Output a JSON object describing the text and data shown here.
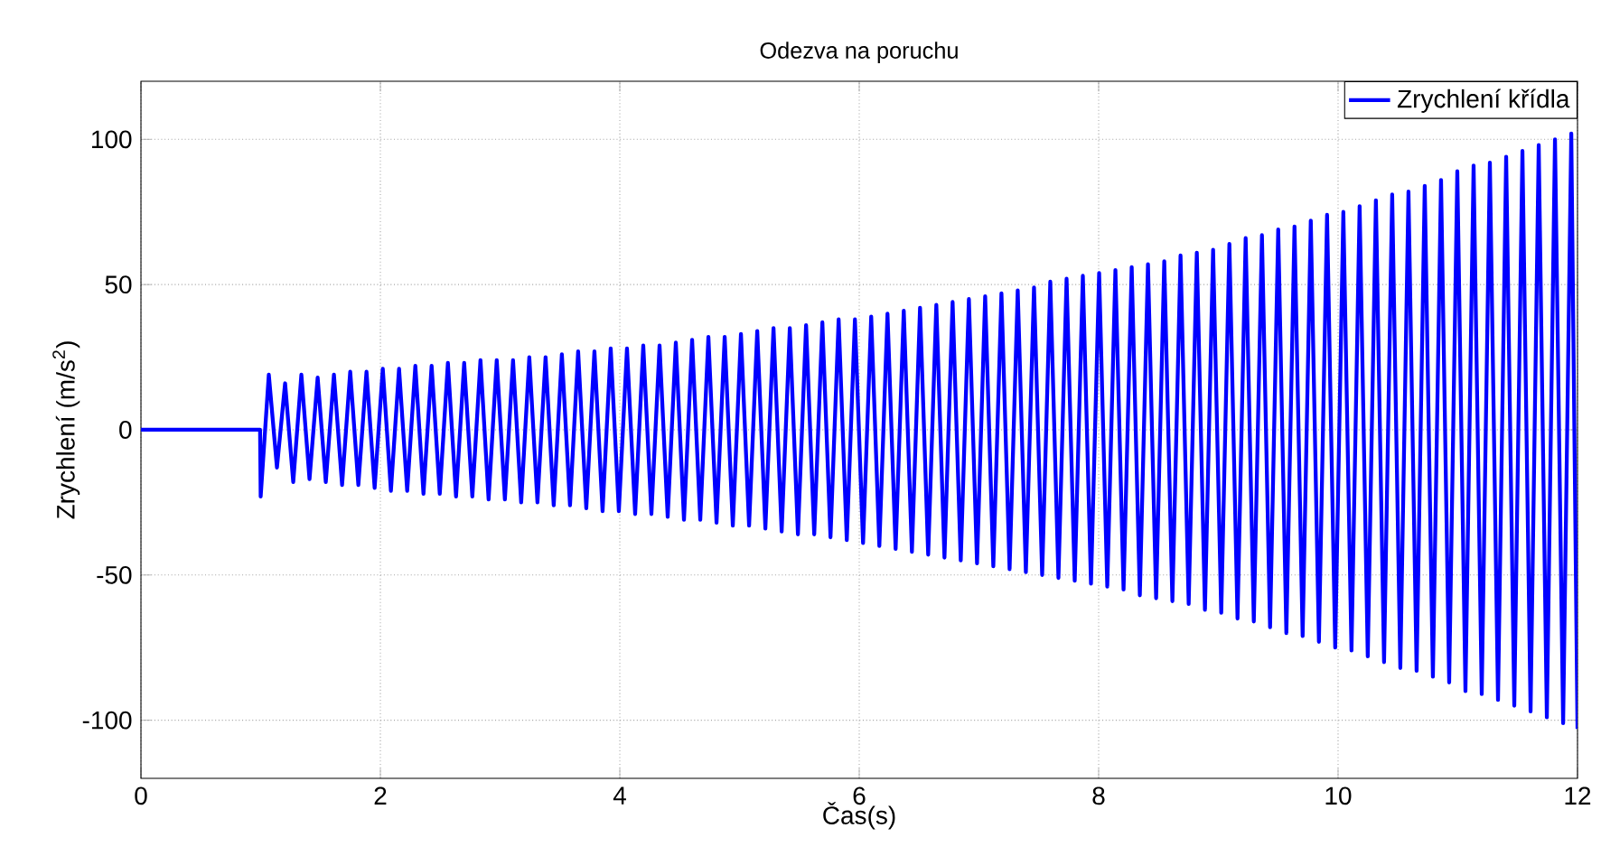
{
  "chart_data": {
    "type": "line",
    "title": "Odezva na poruchu",
    "xlabel": "Čas(s)",
    "ylabel": "Zrychlení (m/s$^{2}$)",
    "xlim": [
      0,
      12
    ],
    "ylim": [
      -120,
      120
    ],
    "xticks": [
      0,
      2,
      4,
      6,
      8,
      10,
      12
    ],
    "yticks": [
      -100,
      -50,
      0,
      50,
      100
    ],
    "grid": true,
    "legend": "top right",
    "marker": "none",
    "line_style": "solid",
    "series": [
      {
        "name": "Zrychlení křídla",
        "color": "#0000ff",
        "x": [
          0,
          0.995,
          1.0,
          1.068,
          1.136,
          1.204,
          1.272,
          1.34,
          1.408,
          1.476,
          1.544,
          1.612,
          1.68,
          1.748,
          1.816,
          1.884,
          1.952,
          2.02,
          2.088,
          2.156,
          2.224,
          2.292,
          2.36,
          2.428,
          2.496,
          2.564,
          2.632,
          2.7,
          2.768,
          2.836,
          2.904,
          2.972,
          3.04,
          3.108,
          3.176,
          3.244,
          3.312,
          3.38,
          3.448,
          3.516,
          3.584,
          3.652,
          3.72,
          3.788,
          3.856,
          3.924,
          3.992,
          4.06,
          4.128,
          4.196,
          4.264,
          4.332,
          4.4,
          4.468,
          4.536,
          4.604,
          4.672,
          4.74,
          4.808,
          4.876,
          4.944,
          5.012,
          5.08,
          5.148,
          5.216,
          5.284,
          5.352,
          5.42,
          5.488,
          5.556,
          5.624,
          5.692,
          5.76,
          5.828,
          5.896,
          5.964,
          6.032,
          6.1,
          6.168,
          6.236,
          6.304,
          6.372,
          6.44,
          6.508,
          6.576,
          6.644,
          6.712,
          6.78,
          6.848,
          6.916,
          6.984,
          7.052,
          7.12,
          7.188,
          7.256,
          7.324,
          7.392,
          7.46,
          7.528,
          7.596,
          7.664,
          7.732,
          7.8,
          7.868,
          7.936,
          8.004,
          8.072,
          8.14,
          8.208,
          8.276,
          8.344,
          8.412,
          8.48,
          8.548,
          8.616,
          8.684,
          8.752,
          8.82,
          8.888,
          8.956,
          9.024,
          9.092,
          9.16,
          9.228,
          9.296,
          9.364,
          9.432,
          9.5,
          9.568,
          9.636,
          9.704,
          9.772,
          9.84,
          9.908,
          9.976,
          10.044,
          10.112,
          10.18,
          10.248,
          10.316,
          10.384,
          10.452,
          10.52,
          10.588,
          10.656,
          10.724,
          10.792,
          10.86,
          10.928,
          10.996,
          11.064,
          11.132,
          11.2,
          11.268,
          11.336,
          11.404,
          11.472,
          11.54,
          11.608,
          11.676,
          11.744,
          11.812,
          11.88,
          11.948,
          12.0
        ],
        "values": [
          0,
          0,
          -23,
          19,
          -13,
          16,
          -18,
          19,
          -17,
          18,
          -18,
          19,
          -19,
          20,
          -19,
          20,
          -20,
          21,
          -21,
          21,
          -21,
          22,
          -22,
          22,
          -22,
          23,
          -23,
          23,
          -23,
          24,
          -24,
          24,
          -24,
          24,
          -25,
          25,
          -25,
          25,
          -26,
          26,
          -26,
          27,
          -27,
          27,
          -28,
          28,
          -28,
          28,
          -29,
          29,
          -29,
          29,
          -30,
          30,
          -31,
          31,
          -31,
          32,
          -32,
          32,
          -33,
          33,
          -33,
          34,
          -34,
          35,
          -35,
          35,
          -36,
          36,
          -36,
          37,
          -37,
          38,
          -38,
          38,
          -39,
          39,
          -40,
          40,
          -41,
          41,
          -42,
          42,
          -43,
          43,
          -44,
          44,
          -45,
          45,
          -46,
          46,
          -47,
          47,
          -48,
          48,
          -49,
          49,
          -50,
          51,
          -51,
          52,
          -52,
          53,
          -53,
          54,
          -54,
          55,
          -55,
          56,
          -57,
          57,
          -58,
          58,
          -59,
          60,
          -60,
          61,
          -62,
          62,
          -63,
          64,
          -65,
          66,
          -66,
          67,
          -68,
          69,
          -70,
          70,
          -71,
          72,
          -73,
          74,
          -75,
          75,
          -76,
          77,
          -78,
          79,
          -80,
          81,
          -82,
          82,
          -83,
          84,
          -85,
          86,
          -87,
          89,
          -90,
          91,
          -91,
          92,
          -93,
          94,
          -95,
          96,
          -97,
          98,
          -99,
          100,
          -101,
          102,
          -103
        ]
      }
    ]
  }
}
